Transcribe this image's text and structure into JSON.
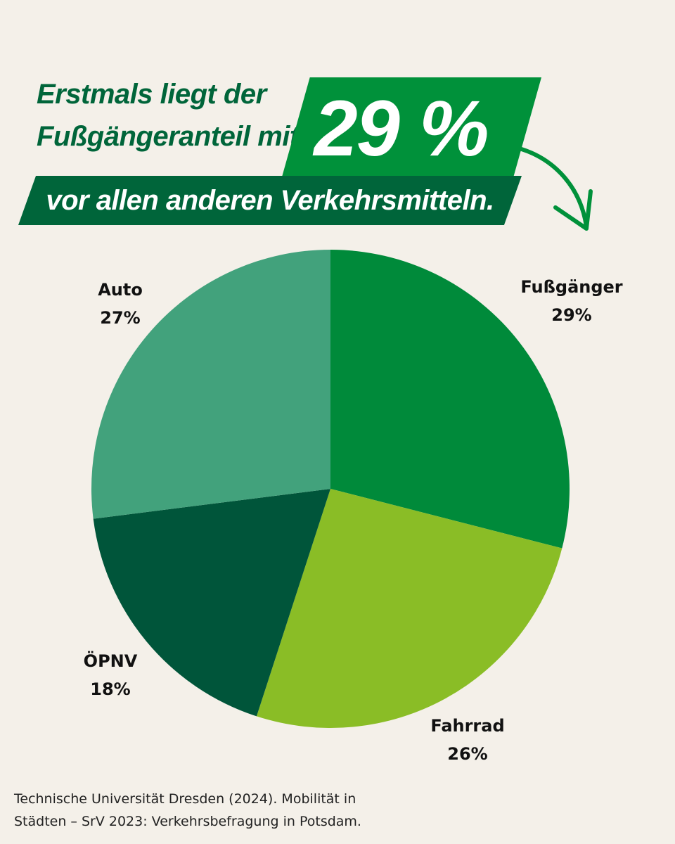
{
  "headline": {
    "line1": "Erstmals liegt der",
    "line2": "Fußgängeranteil mit",
    "big_number": "29 %",
    "line3": "vor allen anderen Verkehrsmitteln."
  },
  "colors": {
    "background": "#f4f0e9",
    "dark_green": "#00653a",
    "green": "#00913a"
  },
  "chart_data": {
    "type": "pie",
    "title": "",
    "slices": [
      {
        "name": "Fußgänger",
        "value": 29,
        "label": "29%",
        "color": "#008a3a"
      },
      {
        "name": "Fahrrad",
        "value": 26,
        "label": "26%",
        "color": "#8abd26"
      },
      {
        "name": "ÖPNV",
        "value": 18,
        "label": "18%",
        "color": "#00553a"
      },
      {
        "name": "Auto",
        "value": 27,
        "label": "27%",
        "color": "#42a27c"
      }
    ],
    "start": "12 o'clock",
    "direction": "clockwise"
  },
  "source": {
    "line1": "Technische Universität Dresden (2024). Mobilität in",
    "line2": "Städten – SrV 2023: Verkehrsbefragung in Potsdam."
  }
}
